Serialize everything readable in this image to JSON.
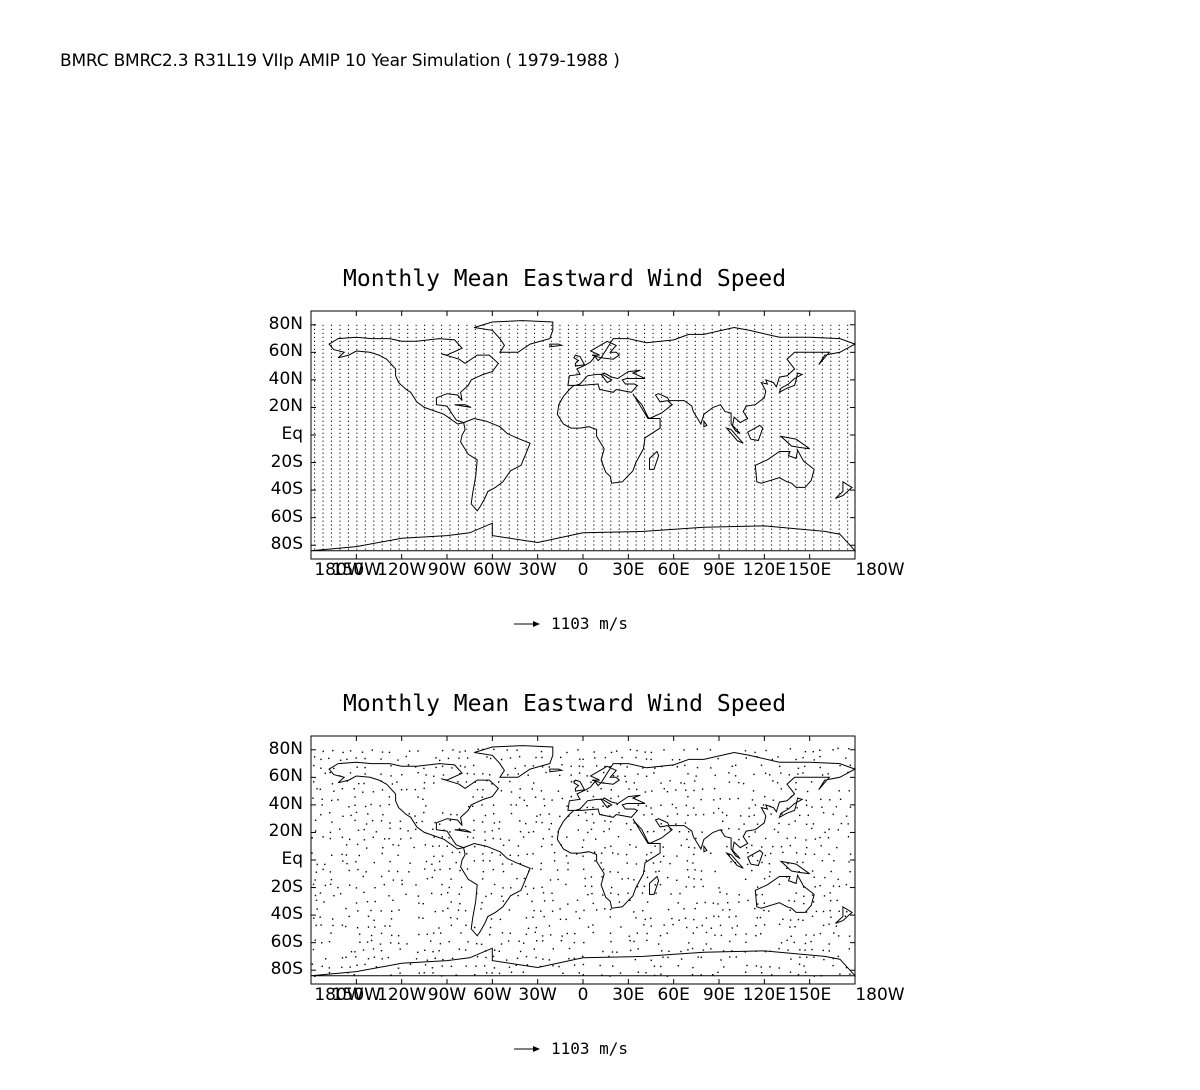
{
  "page_title": "BMRC BMRC2.3 R31L19 VIIp AMIP 10 Year Simulation ( 1979-1988 )",
  "maps": [
    {
      "title": "Monthly Mean Eastward Wind Speed",
      "lat_ticks": [
        "80N",
        "60N",
        "40N",
        "20N",
        "Eq",
        "20S",
        "40S",
        "60S",
        "80S"
      ],
      "lon_ticks": [
        "180W",
        "150W",
        "120W",
        "90W",
        "60W",
        "30W",
        "0",
        "30E",
        "60E",
        "90E",
        "120E",
        "150E",
        "180W"
      ],
      "reference_vector": "1103 m/s",
      "vector_field": "dense"
    },
    {
      "title": "Monthly Mean Eastward Wind Speed",
      "lat_ticks": [
        "80N",
        "60N",
        "40N",
        "20N",
        "Eq",
        "20S",
        "40S",
        "60S",
        "80S"
      ],
      "lon_ticks": [
        "180W",
        "150W",
        "120W",
        "90W",
        "60W",
        "30W",
        "0",
        "30E",
        "60E",
        "90E",
        "120E",
        "150E",
        "180W"
      ],
      "reference_vector": "1103 m/s",
      "vector_field": "sparse"
    }
  ]
}
